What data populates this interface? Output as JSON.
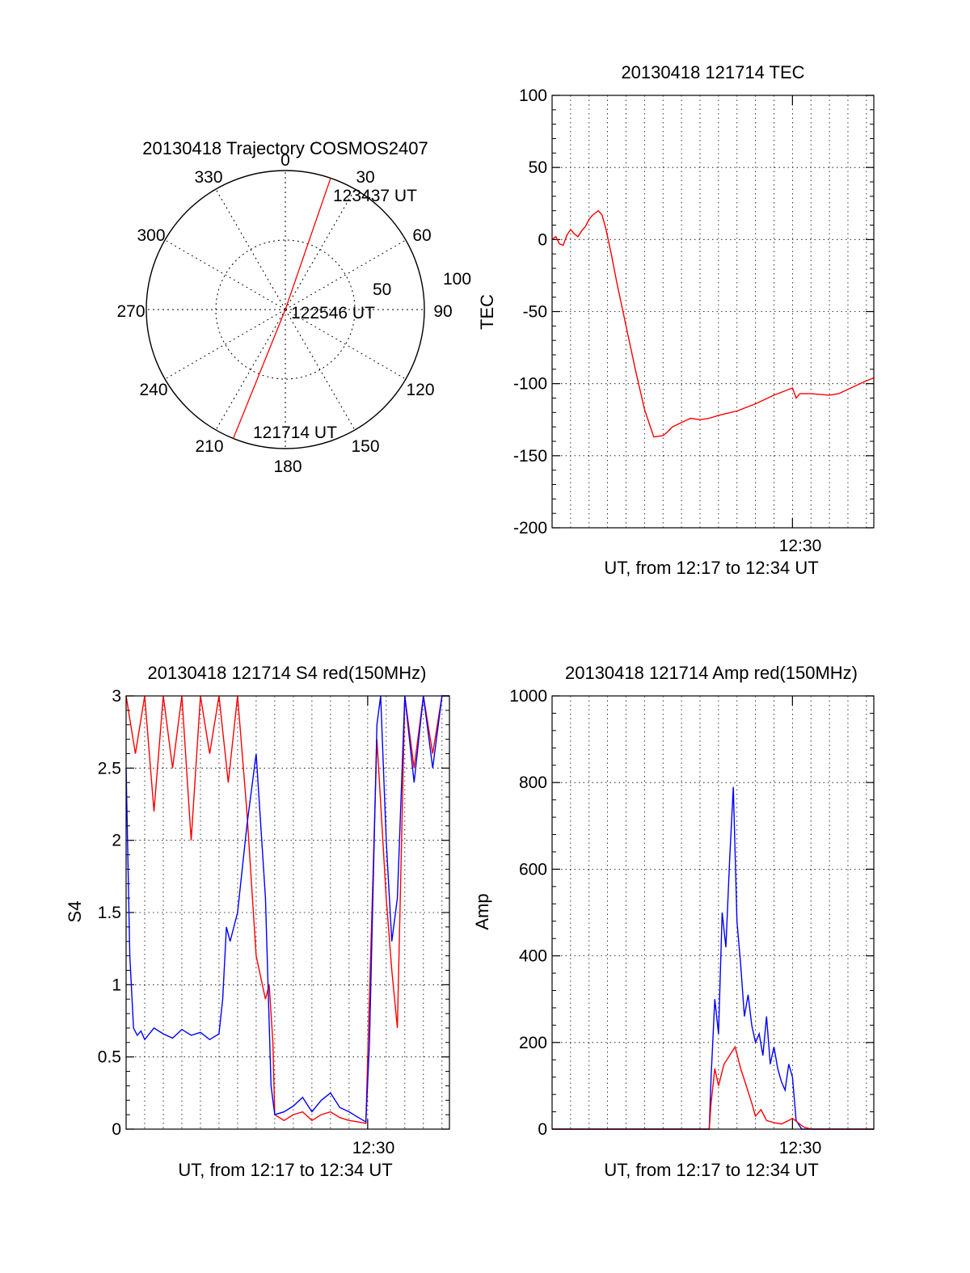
{
  "colors": {
    "red": "#ff0000",
    "blue": "#0000ff",
    "axis": "#000000",
    "grid": "#000000"
  },
  "chart_data": [
    {
      "type": "polar",
      "title": "20130418 Trajectory COSMOS2407",
      "azimuth_labels": [
        "0",
        "30",
        "60",
        "90",
        "120",
        "150",
        "180",
        "210",
        "240",
        "270",
        "300",
        "330"
      ],
      "radial_labels": [
        "50",
        "100"
      ],
      "trajectory": {
        "start_label": "121714 UT",
        "mid_label": "122546 UT",
        "end_label": "123437 UT",
        "points": [
          {
            "az": 202,
            "zenith": 90
          },
          {
            "az": 0,
            "zenith": 0
          },
          {
            "az": 19,
            "zenith": 90
          }
        ]
      },
      "grid": true
    },
    {
      "type": "line",
      "title": "20130418 121714 TEC",
      "xlabel": "UT, from 12:17 to 12:34 UT",
      "ylabel": "TEC",
      "x_tick_label": "12:30",
      "xlim": [
        0,
        17.4
      ],
      "x_tick_at": 13,
      "ylim": [
        -200,
        100
      ],
      "yticks": [
        "100",
        "50",
        "0",
        "-50",
        "-100",
        "-150",
        "-200"
      ],
      "grid": true,
      "series": [
        {
          "color": "#ff0000",
          "x": [
            0,
            0.2,
            0.4,
            0.6,
            0.8,
            1.0,
            1.2,
            1.4,
            1.6,
            1.8,
            2.0,
            2.2,
            2.5,
            2.7,
            2.9,
            3.0,
            3.2,
            3.5,
            4.0,
            4.5,
            5.0,
            5.5,
            6.0,
            6.2,
            6.5,
            7.0,
            7.5,
            8.0,
            8.5,
            9.0,
            10.0,
            11.0,
            12.0,
            13.0,
            13.2,
            13.4,
            14.0,
            15.0,
            15.5,
            16.0,
            16.5,
            17.0,
            17.4
          ],
          "y": [
            0,
            2,
            -3,
            -4,
            3,
            7,
            4,
            2,
            6,
            9,
            14,
            17,
            20,
            17,
            8,
            2,
            -10,
            -30,
            -60,
            -90,
            -118,
            -137,
            -136,
            -134,
            -130,
            -127,
            -124,
            -125,
            -124,
            -122,
            -119,
            -114,
            -108,
            -103,
            -110,
            -107,
            -107,
            -108,
            -107,
            -104,
            -101,
            -98,
            -96
          ]
        }
      ]
    },
    {
      "type": "line",
      "title": "20130418 121714 S4 red(150MHz)",
      "xlabel": "UT, from 12:17 to 12:34 UT",
      "ylabel": "S4",
      "x_tick_label": "12:30",
      "xlim": [
        0,
        17.4
      ],
      "x_tick_at": 13,
      "ylim": [
        0,
        3
      ],
      "yticks": [
        "3",
        "2.5",
        "2",
        "1.5",
        "1",
        "0.5",
        "0"
      ],
      "grid": true,
      "series": [
        {
          "color": "#ff0000",
          "x": [
            0,
            0.5,
            1.0,
            1.5,
            2.0,
            2.5,
            3.0,
            3.5,
            4.0,
            4.5,
            5.0,
            5.5,
            6.0,
            6.5,
            7.0,
            7.5,
            7.7,
            7.9,
            8.0,
            8.5,
            9.0,
            9.5,
            10.0,
            10.5,
            11.0,
            11.5,
            12.0,
            12.5,
            12.9,
            13.0,
            13.5,
            14.0,
            14.3,
            14.6,
            15.0,
            15.5,
            16.0,
            16.5,
            17.0,
            17.4
          ],
          "y": [
            3,
            2.6,
            3,
            2.2,
            3,
            2.5,
            3,
            2.0,
            3,
            2.6,
            3,
            2.4,
            3,
            2.2,
            1.2,
            0.9,
            1.0,
            0.6,
            0.1,
            0.06,
            0.1,
            0.12,
            0.06,
            0.1,
            0.12,
            0.08,
            0.06,
            0.05,
            0.04,
            0.5,
            2.7,
            1.6,
            1.1,
            0.7,
            3,
            2.5,
            3,
            2.6,
            3,
            3
          ]
        },
        {
          "color": "#0000ff",
          "x": [
            0,
            0.2,
            0.4,
            0.6,
            0.8,
            1.0,
            1.5,
            2.0,
            2.5,
            3.0,
            3.5,
            4.0,
            4.5,
            5.0,
            5.2,
            5.4,
            5.6,
            6.0,
            6.5,
            7.0,
            7.2,
            7.5,
            7.8,
            8.0,
            8.5,
            9.0,
            9.5,
            10.0,
            10.5,
            11.0,
            11.5,
            12.0,
            12.5,
            12.9,
            13.1,
            13.5,
            13.7,
            14.0,
            14.3,
            14.6,
            15.0,
            15.5,
            16.0,
            16.5,
            17.0,
            17.4
          ],
          "y": [
            2.5,
            1.2,
            0.7,
            0.65,
            0.68,
            0.62,
            0.7,
            0.66,
            0.63,
            0.69,
            0.65,
            0.67,
            0.62,
            0.66,
            0.9,
            1.4,
            1.3,
            1.5,
            2.1,
            2.6,
            2.2,
            1.6,
            0.3,
            0.1,
            0.12,
            0.16,
            0.22,
            0.12,
            0.2,
            0.25,
            0.15,
            0.12,
            0.08,
            0.05,
            0.6,
            2.8,
            3,
            2.0,
            1.3,
            1.6,
            3,
            2.4,
            3,
            2.5,
            3,
            3
          ]
        }
      ]
    },
    {
      "type": "line",
      "title": "20130418 121714 Amp red(150MHz)",
      "xlabel": "UT, from 12:17 to 12:34 UT",
      "ylabel": "Amp",
      "x_tick_label": "12:30",
      "xlim": [
        0,
        17.4
      ],
      "x_tick_at": 13,
      "ylim": [
        0,
        1000
      ],
      "yticks": [
        "1000",
        "800",
        "600",
        "400",
        "200",
        "0"
      ],
      "grid": true,
      "series": [
        {
          "color": "#0000ff",
          "x": [
            0,
            8.5,
            8.6,
            8.8,
            9.0,
            9.2,
            9.4,
            9.6,
            9.8,
            10.0,
            10.2,
            10.4,
            10.6,
            10.8,
            11.0,
            11.2,
            11.4,
            11.6,
            11.8,
            12.0,
            12.2,
            12.4,
            12.6,
            12.8,
            13.0,
            13.2,
            13.5,
            14.0,
            17.4
          ],
          "y": [
            0,
            0,
            120,
            300,
            220,
            500,
            420,
            620,
            790,
            480,
            380,
            260,
            310,
            240,
            200,
            220,
            170,
            260,
            150,
            190,
            140,
            110,
            90,
            150,
            120,
            20,
            0,
            0,
            0
          ]
        },
        {
          "color": "#ff0000",
          "x": [
            0,
            8.5,
            8.6,
            8.8,
            9.0,
            9.3,
            9.6,
            9.9,
            10.2,
            10.5,
            10.8,
            11.0,
            11.3,
            11.6,
            12.0,
            12.4,
            12.8,
            13.0,
            13.3,
            13.6,
            14.0,
            17.4
          ],
          "y": [
            0,
            0,
            60,
            140,
            100,
            150,
            170,
            190,
            140,
            100,
            60,
            30,
            45,
            20,
            15,
            12,
            20,
            25,
            15,
            5,
            0,
            0
          ]
        }
      ]
    }
  ]
}
